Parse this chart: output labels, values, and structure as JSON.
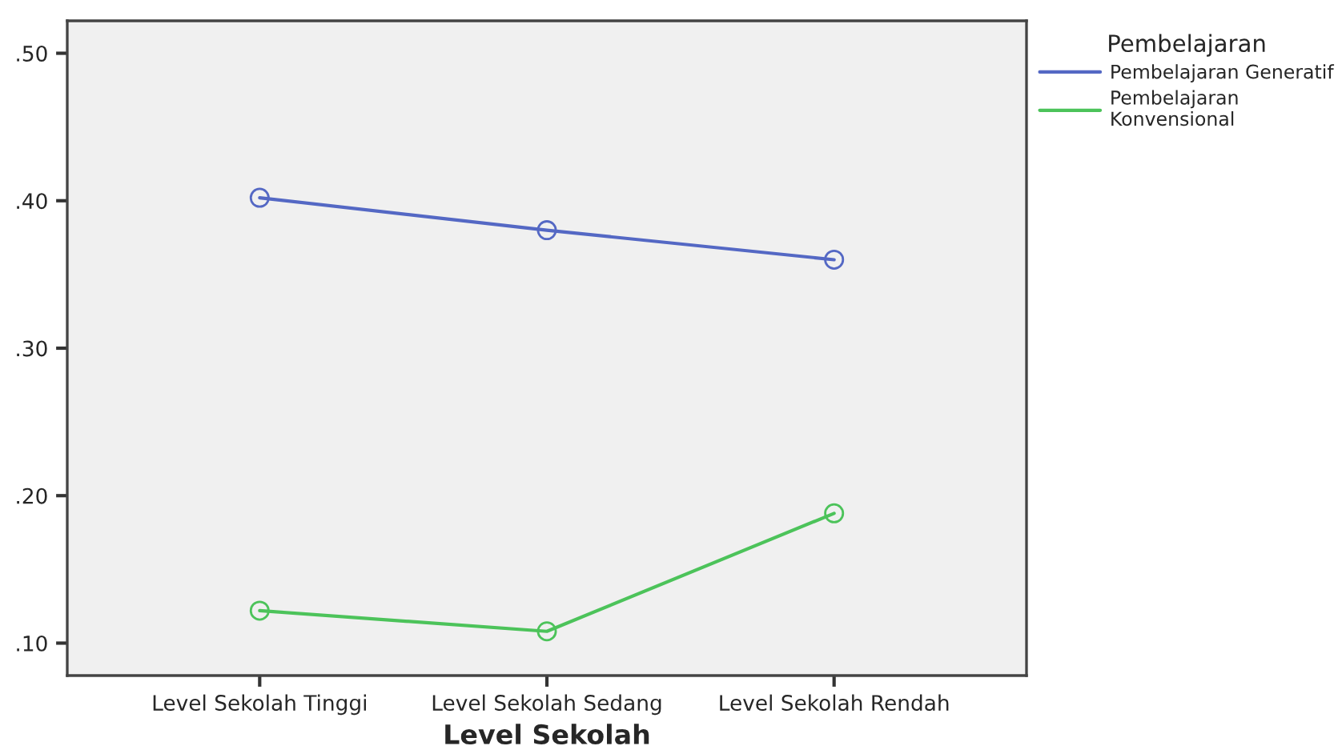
{
  "chart_data": {
    "type": "line",
    "xlabel": "Level Sekolah",
    "legend_title": "Pembelajaran",
    "legend": "top right",
    "marker": "circle",
    "grid": false,
    "categories": [
      "Level Sekolah Tinggi",
      "Level Sekolah Sedang",
      "Level Sekolah Rendah"
    ],
    "series": [
      {
        "name": "Pembelajaran Generatif",
        "color": "#5468c4",
        "values": [
          0.402,
          0.38,
          0.36
        ]
      },
      {
        "name": "Pembelajaran\nKonvensional",
        "color": "#4cc35a",
        "values": [
          0.122,
          0.108,
          0.188
        ]
      }
    ],
    "ylim": [
      0.078,
      0.522
    ],
    "yticks": [
      {
        "value": 0.1,
        "label": ".10"
      },
      {
        "value": 0.2,
        "label": ".20"
      },
      {
        "value": 0.3,
        "label": ".30"
      },
      {
        "value": 0.4,
        "label": ".40"
      },
      {
        "value": 0.5,
        "label": ".50"
      }
    ]
  }
}
